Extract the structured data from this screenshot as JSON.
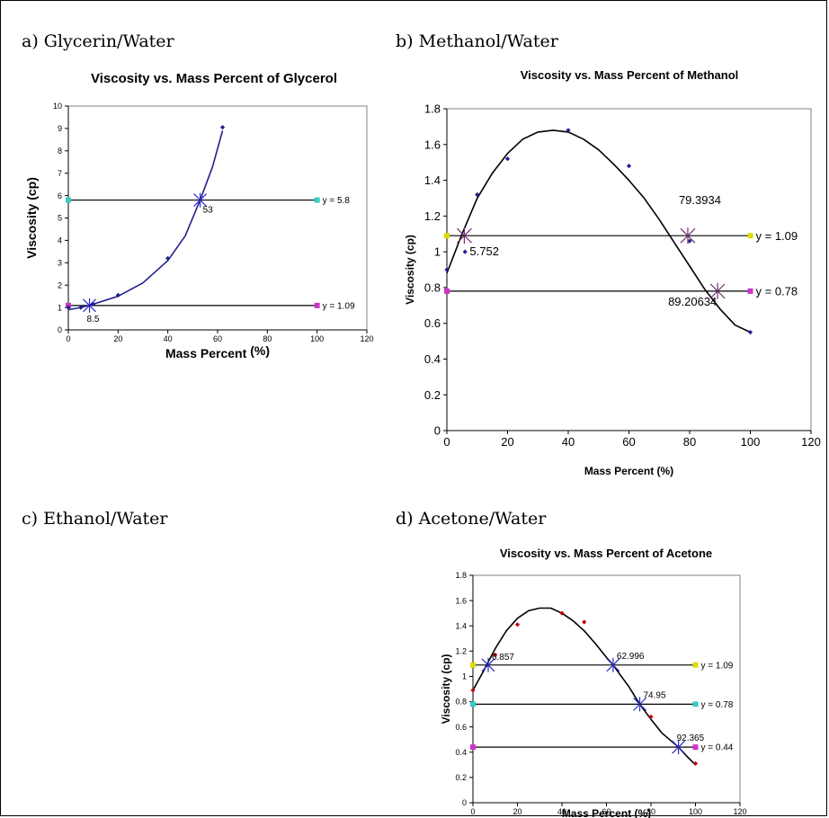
{
  "panels": {
    "a": "a)  Glycerin/Water",
    "b": "b)  Methanol/Water",
    "c": "c)  Ethanol/Water",
    "d": "d)  Acetone/Water"
  },
  "chart_data": [
    {
      "id": "a",
      "type": "scatter",
      "title": "Viscosity vs. Mass Percent of Glycerol",
      "xlabel": "Mass Percent",
      "xlabel_unit": "(%)",
      "ylabel": "Viscosity  (cp)",
      "xlim": [
        0,
        120
      ],
      "xstep": 20,
      "ylim": [
        0,
        10
      ],
      "ystep": 1,
      "grid": false,
      "curve_color": "#1f1f8f",
      "series": [
        {
          "values": [
            [
              0,
              1.0
            ],
            [
              5,
              1.0
            ],
            [
              10,
              1.15
            ],
            [
              20,
              1.55
            ],
            [
              40,
              3.2
            ],
            [
              62,
              9.05
            ]
          ],
          "color": "#1f1f8f"
        }
      ],
      "fit_curve": [
        [
          0,
          0.9
        ],
        [
          5,
          1.0
        ],
        [
          10,
          1.15
        ],
        [
          20,
          1.5
        ],
        [
          30,
          2.1
        ],
        [
          40,
          3.1
        ],
        [
          47,
          4.2
        ],
        [
          53,
          5.8
        ],
        [
          58,
          7.3
        ],
        [
          62,
          8.9
        ]
      ],
      "hlines": [
        {
          "y": 5.8,
          "label": "y = 5.8",
          "color": "#33cccc"
        },
        {
          "y": 1.09,
          "label": "y = 1.09",
          "color": "#cc33cc"
        }
      ],
      "intersections": [
        {
          "x": 53,
          "y": 5.8,
          "label": "53"
        },
        {
          "x": 8.5,
          "y": 1.09,
          "label": "8.5"
        }
      ]
    },
    {
      "id": "b",
      "type": "scatter",
      "title": "Viscosity vs. Mass Percent of Methanol",
      "xlabel": "Mass Percent (%)",
      "ylabel": "Viscosity (cp)",
      "xlim": [
        0,
        120
      ],
      "xstep": 20,
      "ylim": [
        0,
        1.8
      ],
      "ystep": 0.2,
      "grid": false,
      "curve_color": "#000000",
      "series": [
        {
          "values": [
            [
              0,
              0.9
            ],
            [
              6,
              1.0
            ],
            [
              10,
              1.32
            ],
            [
              20,
              1.52
            ],
            [
              40,
              1.68
            ],
            [
              60,
              1.48
            ],
            [
              80,
              1.06
            ],
            [
              100,
              0.55
            ]
          ],
          "color": "#1f1f8f"
        }
      ],
      "fit_curve": [
        [
          0,
          0.88
        ],
        [
          5,
          1.1
        ],
        [
          10,
          1.3
        ],
        [
          15,
          1.44
        ],
        [
          20,
          1.55
        ],
        [
          25,
          1.63
        ],
        [
          30,
          1.67
        ],
        [
          35,
          1.68
        ],
        [
          40,
          1.67
        ],
        [
          45,
          1.63
        ],
        [
          50,
          1.57
        ],
        [
          55,
          1.49
        ],
        [
          60,
          1.4
        ],
        [
          65,
          1.3
        ],
        [
          70,
          1.18
        ],
        [
          75,
          1.05
        ],
        [
          80,
          0.92
        ],
        [
          85,
          0.79
        ],
        [
          90,
          0.68
        ],
        [
          95,
          0.59
        ],
        [
          100,
          0.55
        ]
      ],
      "hlines": [
        {
          "y": 1.09,
          "label": "y = 1.09",
          "color": "#dddd00"
        },
        {
          "y": 0.78,
          "label": "y = 0.78",
          "color": "#cc33cc"
        }
      ],
      "intersections": [
        {
          "x": 5.752,
          "y": 1.09,
          "label": "5.752"
        },
        {
          "x": 79.3934,
          "y": 1.09,
          "label": "79.3934"
        },
        {
          "x": 89.20634,
          "y": 0.78,
          "label": "89.20634"
        }
      ]
    },
    {
      "id": "d",
      "type": "scatter",
      "title": "Viscosity vs. Mass Percent of Acetone",
      "xlabel": "Mass Percent (%)",
      "ylabel": "Viscosity (cp)",
      "xlim": [
        0,
        120
      ],
      "xstep": 20,
      "ylim": [
        0,
        1.8
      ],
      "ystep": 0.2,
      "grid": false,
      "curve_color": "#000000",
      "series": [
        {
          "values": [
            [
              0,
              0.89
            ],
            [
              10,
              1.17
            ],
            [
              20,
              1.41
            ],
            [
              40,
              1.5
            ],
            [
              50,
              1.43
            ],
            [
              80,
              0.68
            ],
            [
              100,
              0.31
            ]
          ],
          "color": "#c00000"
        }
      ],
      "fit_curve": [
        [
          0,
          0.89
        ],
        [
          5,
          1.05
        ],
        [
          10,
          1.22
        ],
        [
          15,
          1.36
        ],
        [
          20,
          1.46
        ],
        [
          25,
          1.52
        ],
        [
          30,
          1.54
        ],
        [
          35,
          1.54
        ],
        [
          40,
          1.5
        ],
        [
          45,
          1.44
        ],
        [
          50,
          1.36
        ],
        [
          55,
          1.26
        ],
        [
          60,
          1.15
        ],
        [
          62.996,
          1.09
        ],
        [
          65,
          1.04
        ],
        [
          70,
          0.92
        ],
        [
          74.95,
          0.78
        ],
        [
          80,
          0.66
        ],
        [
          85,
          0.55
        ],
        [
          92.365,
          0.44
        ],
        [
          96,
          0.37
        ],
        [
          100,
          0.3
        ]
      ],
      "hlines": [
        {
          "y": 1.09,
          "label": "y = 1.09",
          "color": "#dddd00"
        },
        {
          "y": 0.78,
          "label": "y = 0.78",
          "color": "#33cccc"
        },
        {
          "y": 0.44,
          "label": "y = 0.44",
          "color": "#cc33cc"
        }
      ],
      "intersections": [
        {
          "x": 6.857,
          "y": 1.09,
          "label": "6.857"
        },
        {
          "x": 62.996,
          "y": 1.09,
          "label": "62.996"
        },
        {
          "x": 74.95,
          "y": 0.78,
          "label": "74.95"
        },
        {
          "x": 92.365,
          "y": 0.44,
          "label": "92.365"
        }
      ]
    }
  ]
}
